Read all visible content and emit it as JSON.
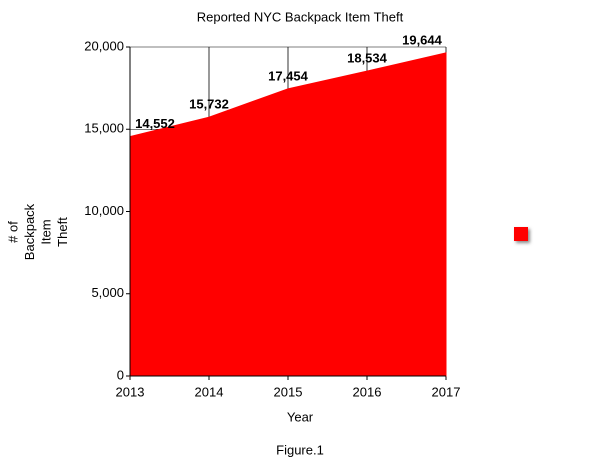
{
  "chart_data": {
    "type": "area",
    "title": "Reported NYC Backpack Item Theft",
    "x_label": "Year",
    "y_label": [
      "# of",
      "Backpack",
      "Item",
      "Theft"
    ],
    "caption": "Figure.1",
    "x": [
      2013,
      2014,
      2015,
      2016,
      2017
    ],
    "values": [
      14552,
      15732,
      17454,
      18534,
      19644
    ],
    "value_labels": [
      "14,552",
      "15,732",
      "17,454",
      "18,534",
      "19,644"
    ],
    "color": "#ff0000",
    "xlim": [
      2013,
      2017
    ],
    "xticks": [
      2013,
      2014,
      2015,
      2016,
      2017
    ],
    "ylim": [
      0,
      20000
    ],
    "yticks": [
      0,
      {
        "value": 5000,
        "label": "5,000"
      },
      {
        "value": 10000,
        "label": "10,000"
      },
      {
        "value": 15000,
        "label": "15,000"
      },
      {
        "value": 20000,
        "label": "20,000"
      }
    ],
    "grid": true
  }
}
